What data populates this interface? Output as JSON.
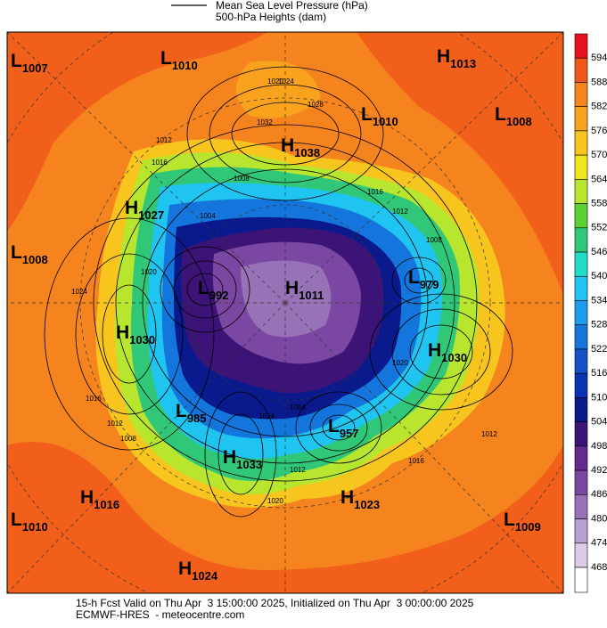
{
  "legend": {
    "pressure_label": "Mean Sea Level Pressure (hPa)",
    "height_label": "500-hPa Heights (dam)"
  },
  "colorbar": {
    "levels": [
      594,
      588,
      582,
      576,
      570,
      564,
      558,
      552,
      546,
      540,
      534,
      528,
      522,
      516,
      510,
      504,
      498,
      492,
      486,
      480,
      474,
      468
    ],
    "colors": [
      "#e8101e",
      "#f0581a",
      "#f5841e",
      "#f8a21e",
      "#f8c41e",
      "#f0e61e",
      "#b8e62e",
      "#5ad232",
      "#30c878",
      "#20dcc8",
      "#20c4f0",
      "#1e9cf0",
      "#1476dc",
      "#1450c8",
      "#0a32b4",
      "#0a1a8c",
      "#3c1478",
      "#642a8c",
      "#7a48a2",
      "#9872b6",
      "#b6a0d4",
      "#dccce8"
    ]
  },
  "centers": [
    {
      "letter": "L",
      "value": 1007
    },
    {
      "letter": "L",
      "value": 1010
    },
    {
      "letter": "H",
      "value": 1013
    },
    {
      "letter": "L",
      "value": 1010
    },
    {
      "letter": "L",
      "value": 1008
    },
    {
      "letter": "H",
      "value": 1038
    },
    {
      "letter": "H",
      "value": 1027
    },
    {
      "letter": "L",
      "value": 1008
    },
    {
      "letter": "L",
      "value": 992
    },
    {
      "letter": "H",
      "value": 1011
    },
    {
      "letter": "L",
      "value": 979
    },
    {
      "letter": "H",
      "value": 1030
    },
    {
      "letter": "H",
      "value": 1030
    },
    {
      "letter": "L",
      "value": 985
    },
    {
      "letter": "L",
      "value": 957
    },
    {
      "letter": "H",
      "value": 1033
    },
    {
      "letter": "H",
      "value": 1016
    },
    {
      "letter": "H",
      "value": 1023
    },
    {
      "letter": "L",
      "value": 1010
    },
    {
      "letter": "L",
      "value": 1009
    },
    {
      "letter": "H",
      "value": 1024
    }
  ],
  "contour_labels": [
    "1020",
    "1024",
    "1028",
    "1032",
    "1012",
    "1016",
    "1008",
    "1004",
    "1016",
    "1012",
    "1008",
    "1024",
    "1020",
    "1016",
    "1012",
    "1008",
    "1016",
    "1012",
    "1024",
    "1020",
    "1004",
    "1012",
    "1020"
  ],
  "footer": {
    "line1": "15-h Fcst Valid on Thu Apr  3 15:00:00 2025, Initialized on Thu Apr  3 00:00:00 2025",
    "line2": "ECMWF-HRES  - meteocentre.com"
  }
}
